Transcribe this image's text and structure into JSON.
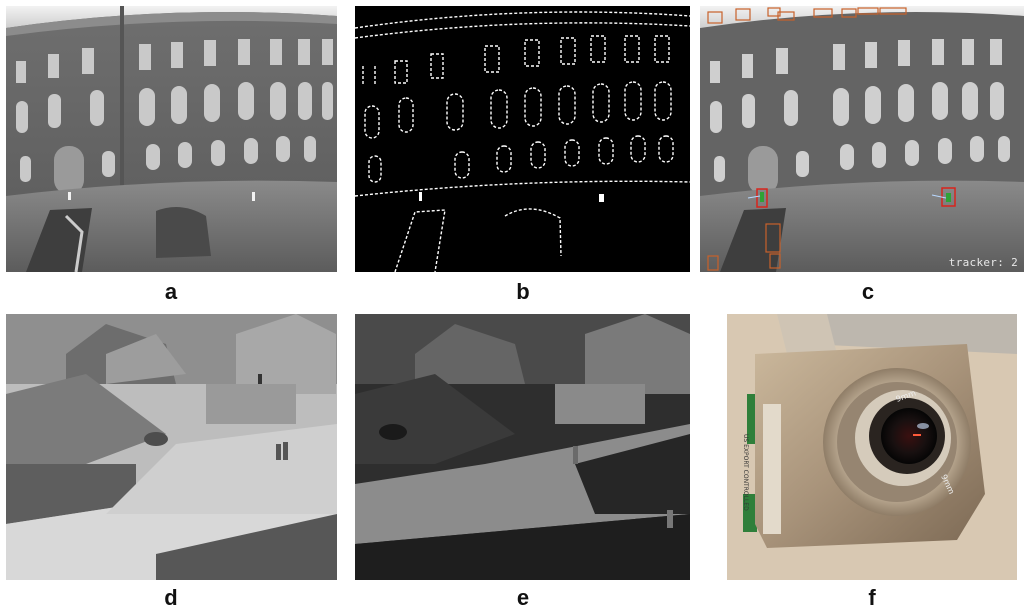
{
  "panels": [
    {
      "id": "a",
      "label": "a",
      "content": "thermal image of building facade with two pedestrians"
    },
    {
      "id": "b",
      "label": "b",
      "content": "binary foreground mask"
    },
    {
      "id": "c",
      "label": "c",
      "content": "tracking result with bounding boxes",
      "overlay_text": "tracker: 2"
    },
    {
      "id": "d",
      "label": "d",
      "content": "thermal image of residential street scene"
    },
    {
      "id": "e",
      "label": "e",
      "content": "inverted-contrast thermal image of residential street scene"
    },
    {
      "id": "f",
      "label": "f",
      "content": "photo of thermal camera with lens",
      "lens_texts": [
        "9mm",
        "9mm"
      ],
      "body_text": "US EXPORT CONTROLLED"
    }
  ],
  "colors": {
    "box_orange": "#c8612a",
    "box_red": "#d8241c",
    "box_green": "#2fa335",
    "track_line": "#b8d8ff",
    "camera_body": "#a8937a",
    "camera_bg": "#d8c8b2",
    "mount_green": "#2f7f3a"
  }
}
